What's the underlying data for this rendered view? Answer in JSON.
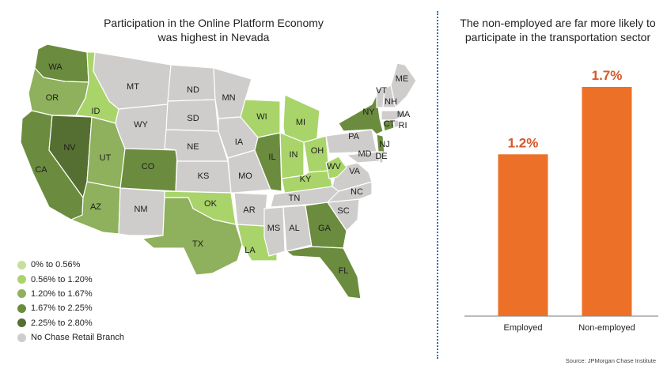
{
  "map_title": [
    "Participation in the Online Platform Economy",
    "was highest in Nevada"
  ],
  "bar_title": [
    "The non-employed are far more likely to",
    "participate in the transportation sector"
  ],
  "source": "Source: JPMorgan Chase Institute",
  "colors": {
    "c0": "#c6e09a",
    "c1": "#a9d46a",
    "c2": "#8fb05c",
    "c3": "#6b8c3e",
    "c4": "#556f32",
    "none": "#cfcdcc",
    "bar": "#ed7028",
    "value_label": "#d4582a"
  },
  "legend": [
    {
      "label": "0% to 0.56%",
      "color_key": "c0"
    },
    {
      "label": "0.56% to 1.20%",
      "color_key": "c1"
    },
    {
      "label": "1.20% to 1.67%",
      "color_key": "c2"
    },
    {
      "label": "1.67% to 2.25%",
      "color_key": "c3"
    },
    {
      "label": "2.25% to 2.80%",
      "color_key": "c4"
    },
    {
      "label": "No Chase Retail Branch",
      "color_key": "none"
    }
  ],
  "chart_data": [
    {
      "type": "choropleth_map",
      "title": "Participation in the Online Platform Economy was highest in Nevada",
      "states": [
        {
          "code": "WA",
          "category": "c3"
        },
        {
          "code": "OR",
          "category": "c2"
        },
        {
          "code": "CA",
          "category": "c3"
        },
        {
          "code": "NV",
          "category": "c4"
        },
        {
          "code": "ID",
          "category": "c1"
        },
        {
          "code": "UT",
          "category": "c2"
        },
        {
          "code": "AZ",
          "category": "c2"
        },
        {
          "code": "MT",
          "category": "none"
        },
        {
          "code": "WY",
          "category": "none"
        },
        {
          "code": "CO",
          "category": "c3"
        },
        {
          "code": "NM",
          "category": "none"
        },
        {
          "code": "ND",
          "category": "none"
        },
        {
          "code": "SD",
          "category": "none"
        },
        {
          "code": "NE",
          "category": "none"
        },
        {
          "code": "KS",
          "category": "none"
        },
        {
          "code": "OK",
          "category": "c1"
        },
        {
          "code": "TX",
          "category": "c2"
        },
        {
          "code": "MN",
          "category": "none"
        },
        {
          "code": "IA",
          "category": "none"
        },
        {
          "code": "MO",
          "category": "none"
        },
        {
          "code": "AR",
          "category": "none"
        },
        {
          "code": "LA",
          "category": "c1"
        },
        {
          "code": "WI",
          "category": "c1"
        },
        {
          "code": "IL",
          "category": "c3"
        },
        {
          "code": "MI",
          "category": "c1"
        },
        {
          "code": "IN",
          "category": "c1"
        },
        {
          "code": "OH",
          "category": "c1"
        },
        {
          "code": "KY",
          "category": "c1"
        },
        {
          "code": "TN",
          "category": "none"
        },
        {
          "code": "MS",
          "category": "none"
        },
        {
          "code": "AL",
          "category": "none"
        },
        {
          "code": "GA",
          "category": "c3"
        },
        {
          "code": "FL",
          "category": "c3"
        },
        {
          "code": "SC",
          "category": "none"
        },
        {
          "code": "NC",
          "category": "none"
        },
        {
          "code": "VA",
          "category": "none"
        },
        {
          "code": "WV",
          "category": "c1"
        },
        {
          "code": "PA",
          "category": "none"
        },
        {
          "code": "NY",
          "category": "c3"
        },
        {
          "code": "NJ",
          "category": "c3"
        },
        {
          "code": "CT",
          "category": "c3"
        },
        {
          "code": "MD",
          "category": "none"
        },
        {
          "code": "DE",
          "category": "none"
        },
        {
          "code": "RI",
          "category": "none"
        },
        {
          "code": "MA",
          "category": "none"
        },
        {
          "code": "VT",
          "category": "none"
        },
        {
          "code": "NH",
          "category": "none"
        },
        {
          "code": "ME",
          "category": "none"
        }
      ]
    },
    {
      "type": "bar",
      "title": "The non-employed are far more likely to participate in the transportation sector",
      "categories": [
        "Employed",
        "Non-employed"
      ],
      "values": [
        1.2,
        1.7
      ],
      "value_labels": [
        "1.2%",
        "1.7%"
      ],
      "ylim": [
        0,
        1.7
      ]
    }
  ]
}
